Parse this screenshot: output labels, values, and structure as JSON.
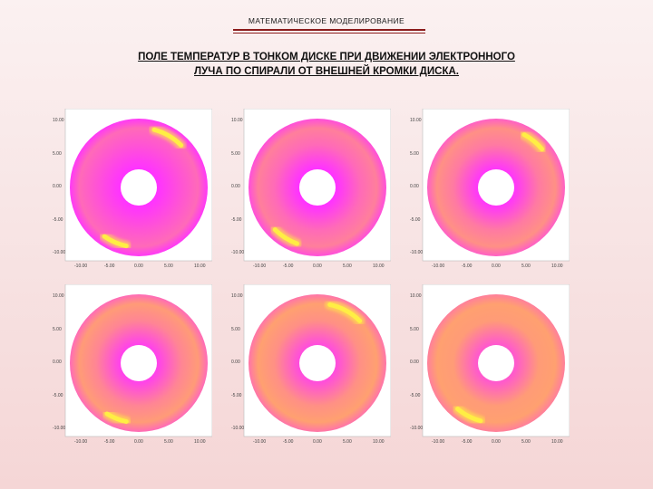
{
  "header": {
    "text": "МАТЕМАТИЧЕСКОЕ МОДЕЛИРОВАНИЕ"
  },
  "title": {
    "line1": "ПОЛЕ ТЕМПЕРАТУР В ТОНКОМ ДИСКЕ ПРИ ДВИЖЕНИИ ЭЛЕКТРОННОГО",
    "line2": "ЛУЧА ПО СПИРАЛИ ОТ ВНЕШНЕЙ КРОМКИ ДИСКА."
  },
  "colors": {
    "cold": "#ff33ff",
    "warm": "#ffa070",
    "hot": "#ffee44",
    "hole": "#ffffff",
    "title_rule": "#8b1c1c"
  },
  "panels": [
    {
      "id": "p1",
      "y_ticks": [
        "10.00",
        "5.00",
        "0.00",
        "-5.00",
        "-10.00"
      ],
      "x_ticks": [
        "-10.00",
        "-5.00",
        "0.00",
        "5.00",
        "10.00"
      ],
      "warmth": 0.15,
      "hot_spots": [
        {
          "start_deg": 45,
          "end_deg": 75
        },
        {
          "start_deg": 235,
          "end_deg": 258
        }
      ]
    },
    {
      "id": "p2",
      "y_ticks": [
        "10.00",
        "5.00",
        "0.00",
        "-5.00",
        "-10.00"
      ],
      "x_ticks": [
        "-10.00",
        "-5.00",
        "0.00",
        "5.00",
        "10.00"
      ],
      "warmth": 0.35,
      "hot_spots": [
        {
          "start_deg": 225,
          "end_deg": 250
        }
      ]
    },
    {
      "id": "p3",
      "y_ticks": [
        "10.00",
        "5.00",
        "0.00",
        "-5.00",
        "-10.00"
      ],
      "x_ticks": [
        "-10.00",
        "-5.00",
        "0.00",
        "5.00",
        "10.00"
      ],
      "warmth": 0.5,
      "hot_spots": [
        {
          "start_deg": 40,
          "end_deg": 62
        }
      ]
    },
    {
      "id": "p4",
      "y_ticks": [
        "10.00",
        "5.00",
        "0.00",
        "-5.00",
        "-10.00"
      ],
      "x_ticks": [
        "-10.00",
        "-5.00",
        "0.00",
        "5.00",
        "10.00"
      ],
      "warmth": 0.6,
      "hot_spots": [
        {
          "start_deg": 238,
          "end_deg": 258
        }
      ]
    },
    {
      "id": "p5",
      "y_ticks": [
        "10.00",
        "5.00",
        "0.00",
        "-5.00",
        "-10.00"
      ],
      "x_ticks": [
        "-10.00",
        "-5.00",
        "0.00",
        "5.00",
        "10.00"
      ],
      "warmth": 0.7,
      "hot_spots": [
        {
          "start_deg": 45,
          "end_deg": 78
        }
      ]
    },
    {
      "id": "p6",
      "y_ticks": [
        "10.00",
        "5.00",
        "0.00",
        "-5.00",
        "-10.00"
      ],
      "x_ticks": [
        "-10.00",
        "-5.00",
        "0.00",
        "5.00",
        "10.00"
      ],
      "warmth": 0.8,
      "hot_spots": [
        {
          "start_deg": 230,
          "end_deg": 255
        }
      ]
    }
  ]
}
